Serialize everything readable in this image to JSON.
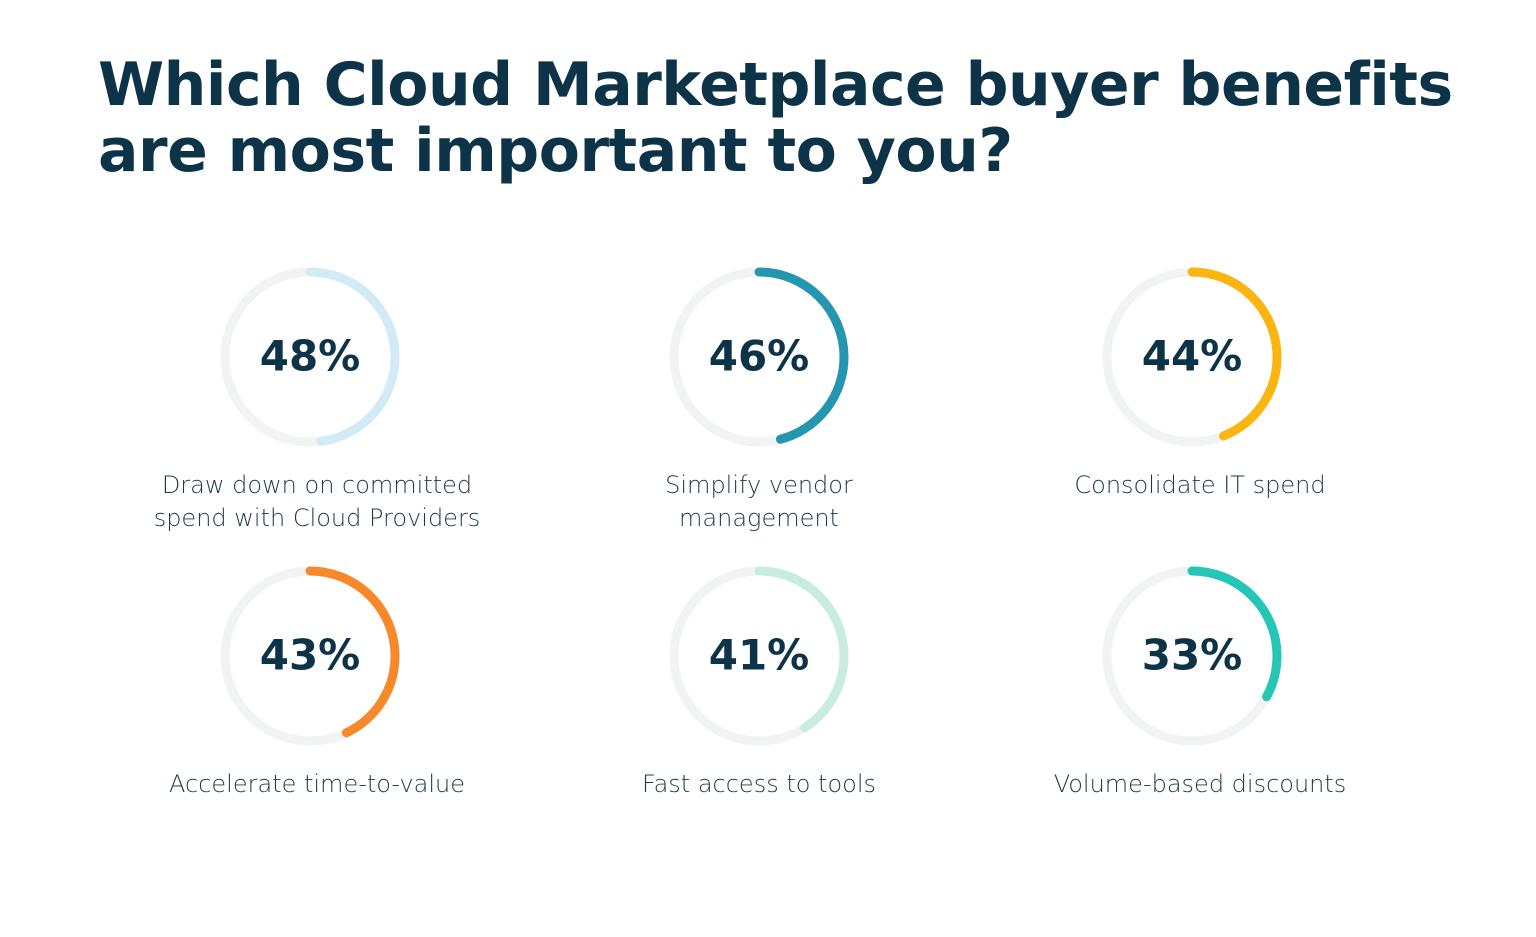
{
  "chart_data": {
    "type": "gauge",
    "title": "Which Cloud Marketplace buyer benefits are most important to you?",
    "categories": [
      "Draw down on committed spend with Cloud Providers",
      "Simplify vendor management",
      "Consolidate IT spend",
      "Accelerate time-to-value",
      "Fast access to tools",
      "Volume-based discounts"
    ],
    "values": [
      48,
      46,
      44,
      43,
      41,
      33
    ],
    "value_labels": [
      "48%",
      "46%",
      "44%",
      "43%",
      "41%",
      "33%"
    ],
    "colors": [
      "#d3ebf5",
      "#2596b0",
      "#fbb511",
      "#f7892a",
      "#c8ede0",
      "#25c6b5"
    ]
  }
}
